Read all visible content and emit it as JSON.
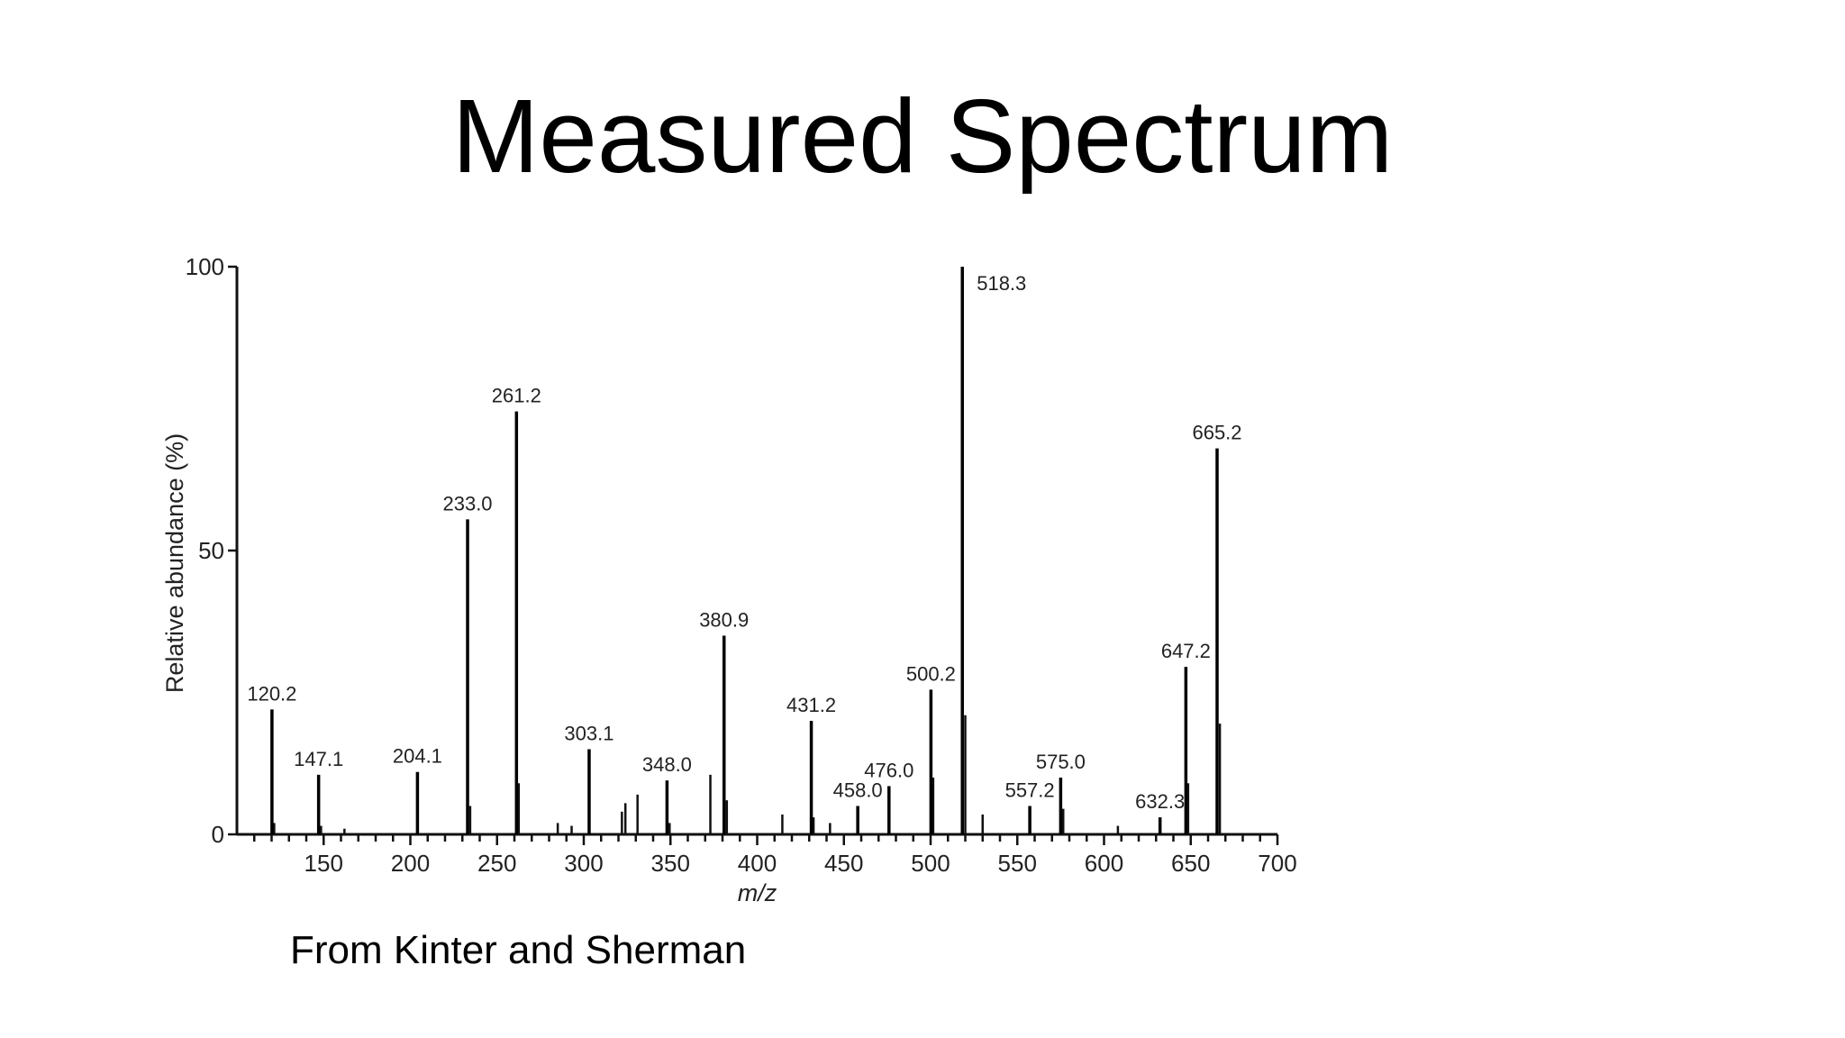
{
  "slide": {
    "title": "Measured Spectrum",
    "credit": "From Kinter and Sherman"
  },
  "chart_data": {
    "type": "bar",
    "xlabel": "m/z",
    "ylabel": "Relative abundance (%)",
    "xlim": [
      100,
      700
    ],
    "ylim": [
      0,
      100
    ],
    "x_ticks": [
      150,
      200,
      250,
      300,
      350,
      400,
      450,
      500,
      550,
      600,
      650,
      700
    ],
    "y_ticks": [
      0,
      50,
      100
    ],
    "grid": false,
    "legend": "none",
    "peaks": [
      {
        "mz": 120.2,
        "abundance": 22,
        "label": "120.2"
      },
      {
        "mz": 147.1,
        "abundance": 10.5,
        "label": "147.1"
      },
      {
        "mz": 204.1,
        "abundance": 11,
        "label": "204.1"
      },
      {
        "mz": 233.0,
        "abundance": 55.5,
        "label": "233.0"
      },
      {
        "mz": 261.2,
        "abundance": 74.5,
        "label": "261.2"
      },
      {
        "mz": 303.1,
        "abundance": 15,
        "label": "303.1"
      },
      {
        "mz": 348.0,
        "abundance": 9.5,
        "label": "348.0"
      },
      {
        "mz": 380.9,
        "abundance": 35,
        "label": "380.9"
      },
      {
        "mz": 431.2,
        "abundance": 20,
        "label": "431.2"
      },
      {
        "mz": 458.0,
        "abundance": 5,
        "label": "458.0"
      },
      {
        "mz": 476.0,
        "abundance": 8.5,
        "label": "476.0"
      },
      {
        "mz": 500.2,
        "abundance": 25.5,
        "label": "500.2"
      },
      {
        "mz": 518.3,
        "abundance": 100,
        "label": "518.3"
      },
      {
        "mz": 557.2,
        "abundance": 5,
        "label": "557.2"
      },
      {
        "mz": 575.0,
        "abundance": 10,
        "label": "575.0"
      },
      {
        "mz": 632.3,
        "abundance": 3,
        "label": "632.3"
      },
      {
        "mz": 647.2,
        "abundance": 29.5,
        "label": "647.2"
      },
      {
        "mz": 665.2,
        "abundance": 68,
        "label": "665.2"
      }
    ],
    "minor_peaks": [
      {
        "mz": 121.5,
        "abundance": 2
      },
      {
        "mz": 148.5,
        "abundance": 1.5
      },
      {
        "mz": 162,
        "abundance": 1
      },
      {
        "mz": 234.5,
        "abundance": 5
      },
      {
        "mz": 262.5,
        "abundance": 9
      },
      {
        "mz": 285,
        "abundance": 2
      },
      {
        "mz": 293,
        "abundance": 1.5
      },
      {
        "mz": 322,
        "abundance": 4
      },
      {
        "mz": 324,
        "abundance": 5.5
      },
      {
        "mz": 331,
        "abundance": 7
      },
      {
        "mz": 349.5,
        "abundance": 2
      },
      {
        "mz": 373,
        "abundance": 10.5
      },
      {
        "mz": 382.5,
        "abundance": 6
      },
      {
        "mz": 414.5,
        "abundance": 3.5
      },
      {
        "mz": 432.5,
        "abundance": 3
      },
      {
        "mz": 442,
        "abundance": 2
      },
      {
        "mz": 501.5,
        "abundance": 10
      },
      {
        "mz": 520,
        "abundance": 21
      },
      {
        "mz": 530,
        "abundance": 3.5
      },
      {
        "mz": 576.5,
        "abundance": 4.5
      },
      {
        "mz": 608,
        "abundance": 1.5
      },
      {
        "mz": 648.5,
        "abundance": 9
      },
      {
        "mz": 666.8,
        "abundance": 19.5
      }
    ]
  }
}
